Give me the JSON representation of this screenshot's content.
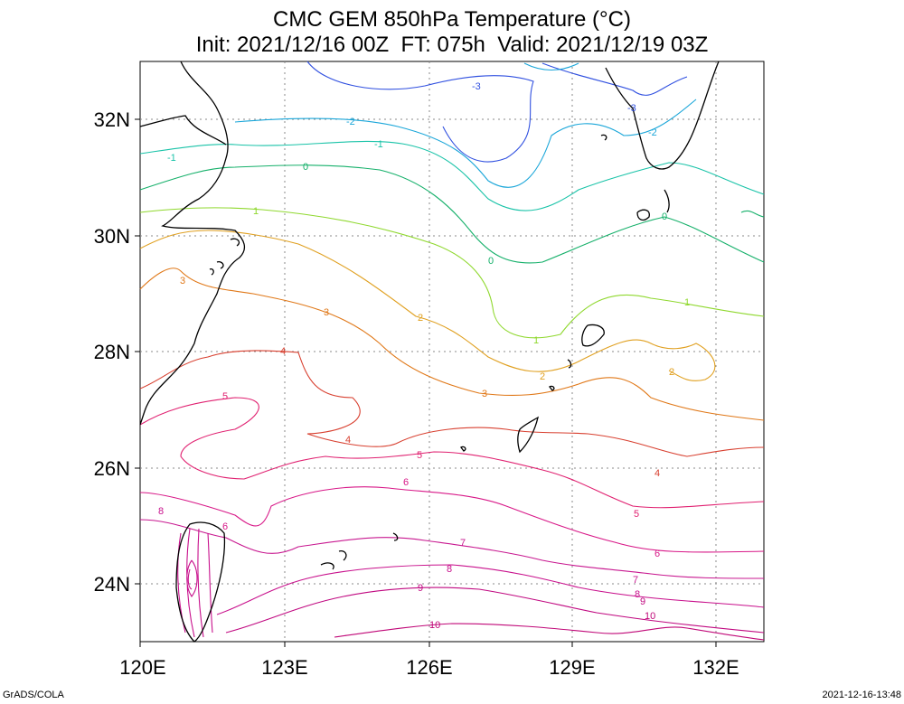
{
  "title": {
    "line1": "CMC GEM 850hPa Temperature (°C)",
    "line2": "Init: 2021/12/16 00Z  FT: 075h  Valid: 2021/12/19 03Z"
  },
  "axes": {
    "lon_labels": [
      "120E",
      "123E",
      "126E",
      "129E",
      "132E"
    ],
    "lat_labels": [
      "24N",
      "26N",
      "28N",
      "30N",
      "32N"
    ]
  },
  "footer": {
    "left": "GrADS/COLA",
    "right": "2021-12-16-13:48"
  },
  "contour_colors": {
    "-3": "#3050e0",
    "-2": "#1aa6d9",
    "-1": "#19c3a8",
    "0": "#15b06a",
    "1": "#8fd82e",
    "2": "#e0a020",
    "3": "#e07818",
    "4": "#d84030",
    "5": "#e02070",
    "6": "#d81888",
    "7": "#c81890",
    "8": "#c8108c",
    "9": "#c00880",
    "10": "#c00878"
  },
  "contour_labels": [
    "-3",
    "-3",
    "-2",
    "-2",
    "-1",
    "-1",
    "0",
    "0",
    "0",
    "1",
    "1",
    "1",
    "2",
    "2",
    "2",
    "3",
    "3",
    "3",
    "4",
    "4",
    "4",
    "5",
    "5",
    "5",
    "6",
    "6",
    "6",
    "7",
    "7",
    "8",
    "8",
    "8",
    "9",
    "9",
    "10",
    "10"
  ]
}
